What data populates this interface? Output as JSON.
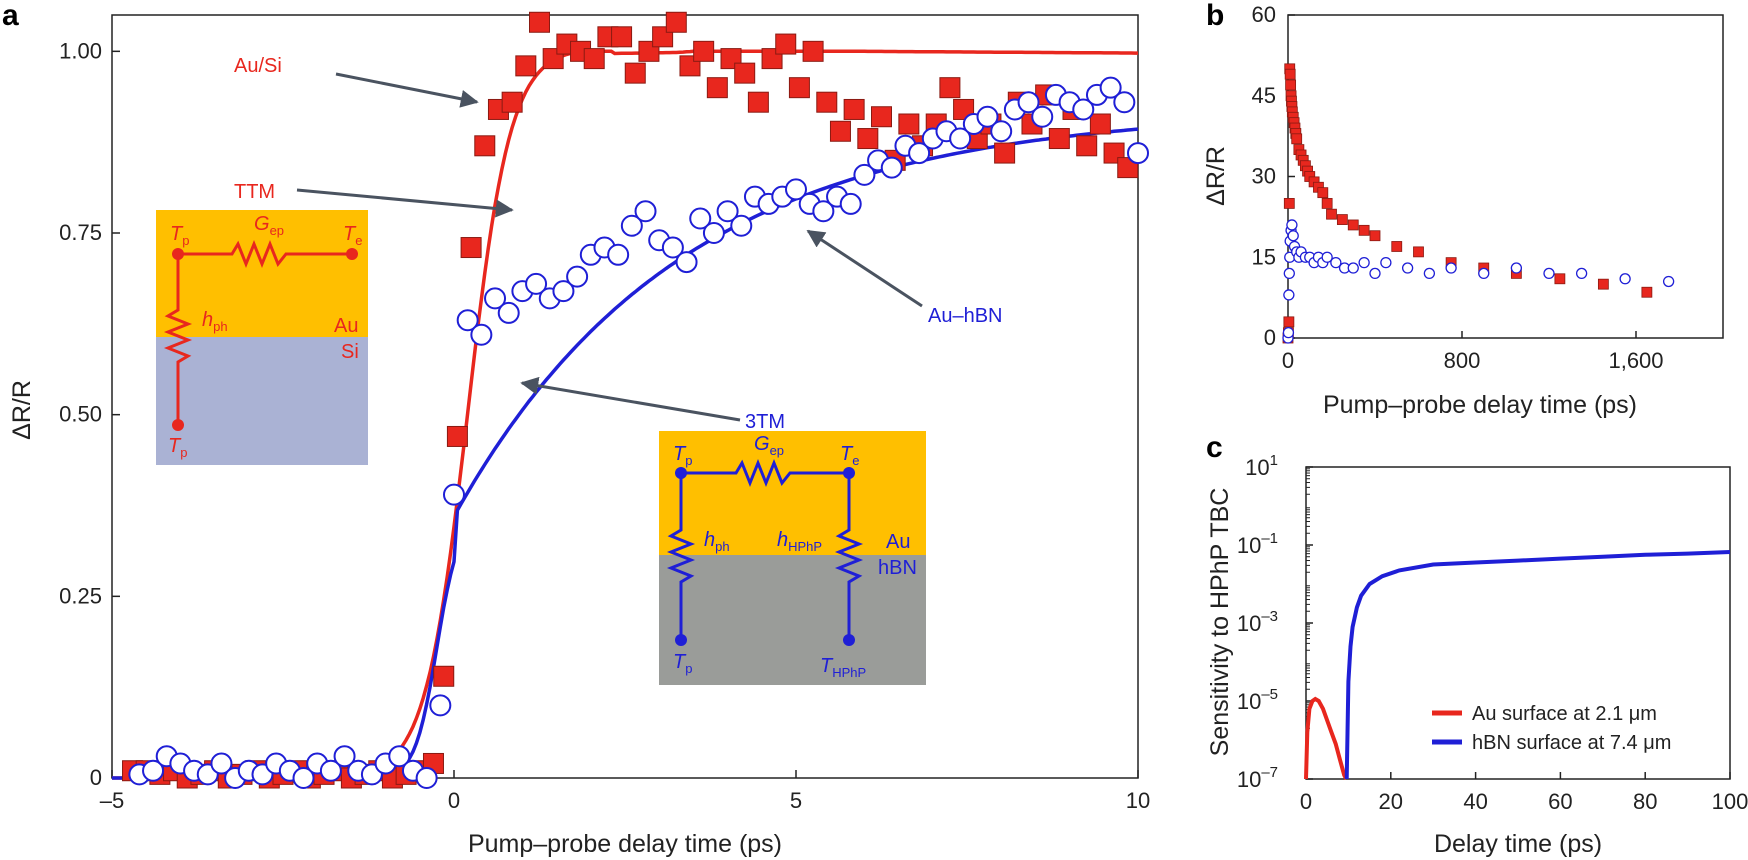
{
  "colors": {
    "red": "#e8271e",
    "blue": "#1f1fd6",
    "gold": "#ffbf00",
    "si": "#aab2d4",
    "hbn": "#9a9c99",
    "arrow": "#4a5360"
  },
  "chart_data": [
    {
      "panel": "a",
      "type": "scatter",
      "xlabel": "Pump–probe delay time (ps)",
      "ylabel": "ΔR/R",
      "xlim": [
        -5,
        10
      ],
      "ylim": [
        0,
        1.05
      ],
      "xticks": [
        "–5",
        "0",
        "5",
        "10"
      ],
      "yticks": [
        "0",
        "0.25",
        "0.50",
        "0.75",
        "1.00"
      ],
      "series": [
        {
          "name": "Au/Si",
          "marker": "square",
          "x": [
            -4.7,
            -4.5,
            -4.3,
            -4.1,
            -3.9,
            -3.7,
            -3.5,
            -3.3,
            -3.1,
            -2.9,
            -2.7,
            -2.5,
            -2.3,
            -2.1,
            -1.9,
            -1.7,
            -1.5,
            -1.3,
            -1.1,
            -0.9,
            -0.7,
            -0.5,
            -0.3,
            -0.15,
            0.05,
            0.25,
            0.45,
            0.65,
            0.85,
            1.05,
            1.25,
            1.45,
            1.65,
            1.85,
            2.05,
            2.25,
            2.45,
            2.65,
            2.85,
            3.05,
            3.25,
            3.45,
            3.65,
            3.85,
            4.05,
            4.25,
            4.45,
            4.65,
            4.85,
            5.05,
            5.25,
            5.45,
            5.65,
            5.85,
            6.05,
            6.25,
            6.45,
            6.65,
            6.85,
            7.05,
            7.25,
            7.45,
            7.65,
            7.85,
            8.05,
            8.25,
            8.45,
            8.65,
            8.85,
            9.05,
            9.25,
            9.45,
            9.65,
            9.85
          ],
          "y": [
            0.01,
            0.01,
            0.005,
            0.01,
            0.0,
            0.005,
            0.01,
            0.0,
            0.005,
            0.01,
            0.0,
            0.005,
            0.01,
            0.0,
            0.005,
            0.01,
            0.0,
            0.005,
            0.01,
            0.0,
            0.005,
            0.01,
            0.02,
            0.14,
            0.47,
            0.73,
            0.87,
            0.92,
            0.93,
            0.98,
            1.04,
            0.99,
            1.01,
            1.0,
            0.99,
            1.02,
            1.02,
            0.97,
            1.0,
            1.02,
            1.04,
            0.98,
            1.0,
            0.95,
            0.99,
            0.97,
            0.93,
            0.99,
            1.01,
            0.95,
            1.0,
            0.93,
            0.89,
            0.92,
            0.88,
            0.91,
            0.85,
            0.9,
            0.87,
            0.9,
            0.95,
            0.92,
            0.88,
            0.9,
            0.86,
            0.93,
            0.9,
            0.94,
            0.88,
            0.92,
            0.87,
            0.9,
            0.86,
            0.84
          ]
        },
        {
          "name": "Au–hBN",
          "marker": "open-circle",
          "x": [
            -4.6,
            -4.4,
            -4.2,
            -4.0,
            -3.8,
            -3.6,
            -3.4,
            -3.2,
            -3.0,
            -2.8,
            -2.6,
            -2.4,
            -2.2,
            -2.0,
            -1.8,
            -1.6,
            -1.4,
            -1.2,
            -1.0,
            -0.8,
            -0.6,
            -0.4,
            -0.2,
            0.0,
            0.2,
            0.4,
            0.6,
            0.8,
            1.0,
            1.2,
            1.4,
            1.6,
            1.8,
            2.0,
            2.2,
            2.4,
            2.6,
            2.8,
            3.0,
            3.2,
            3.4,
            3.6,
            3.8,
            4.0,
            4.2,
            4.4,
            4.6,
            4.8,
            5.0,
            5.2,
            5.4,
            5.6,
            5.8,
            6.0,
            6.2,
            6.4,
            6.6,
            6.8,
            7.0,
            7.2,
            7.4,
            7.6,
            7.8,
            8.0,
            8.2,
            8.4,
            8.6,
            8.8,
            9.0,
            9.2,
            9.4,
            9.6,
            9.8,
            10.0
          ],
          "y": [
            0.005,
            0.01,
            0.03,
            0.02,
            0.01,
            0.005,
            0.02,
            0.0,
            0.01,
            0.005,
            0.02,
            0.01,
            0.0,
            0.02,
            0.01,
            0.03,
            0.01,
            0.005,
            0.02,
            0.03,
            0.01,
            0.0,
            0.1,
            0.39,
            0.63,
            0.61,
            0.66,
            0.64,
            0.67,
            0.68,
            0.66,
            0.67,
            0.69,
            0.72,
            0.73,
            0.72,
            0.76,
            0.78,
            0.74,
            0.73,
            0.71,
            0.77,
            0.75,
            0.78,
            0.76,
            0.8,
            0.79,
            0.8,
            0.81,
            0.79,
            0.78,
            0.8,
            0.79,
            0.83,
            0.85,
            0.84,
            0.87,
            0.86,
            0.88,
            0.89,
            0.88,
            0.9,
            0.91,
            0.89,
            0.92,
            0.93,
            0.91,
            0.94,
            0.93,
            0.92,
            0.94,
            0.95,
            0.93,
            0.86
          ]
        }
      ],
      "fits": [
        {
          "name": "TTM",
          "color": "red"
        },
        {
          "name": "3TM",
          "color": "blue"
        }
      ],
      "annotations": {
        "ausi": "Au/Si",
        "ttm": "TTM",
        "auhbn": "Au–hBN",
        "threetm": "3TM"
      },
      "inset_ttm": {
        "tp": "T",
        "tp_sub": "p",
        "gep": "G",
        "gep_sub": "ep",
        "te": "T",
        "te_sub": "e",
        "hph": "h",
        "hph_sub": "ph",
        "au": "Au",
        "si": "Si",
        "tp2": "T",
        "tp2_sub": "p"
      },
      "inset_3tm": {
        "tp": "T",
        "tp_sub": "p",
        "gep": "G",
        "gep_sub": "ep",
        "te": "T",
        "te_sub": "e",
        "hph": "h",
        "hph_sub": "ph",
        "hhphp": "h",
        "hhphp_sub": "HPhP",
        "au": "Au",
        "hbn": "hBN",
        "tp2": "T",
        "tp2_sub": "p",
        "thphp": "T",
        "thphp_sub": "HPhP"
      }
    },
    {
      "panel": "b",
      "type": "scatter",
      "xlabel": "Pump–probe delay time (ps)",
      "ylabel": "ΔR/R",
      "xlim": [
        0,
        2000
      ],
      "ylim": [
        0,
        60
      ],
      "xticks": [
        "0",
        "800",
        "1,600"
      ],
      "yticks": [
        "0",
        "15",
        "30",
        "45",
        "60"
      ],
      "series": [
        {
          "name": "Au/Si",
          "marker": "square",
          "x": [
            0,
            2,
            4,
            6,
            8,
            10,
            12,
            14,
            16,
            18,
            20,
            24,
            28,
            32,
            36,
            40,
            50,
            60,
            70,
            80,
            90,
            100,
            120,
            140,
            160,
            180,
            200,
            250,
            300,
            350,
            400,
            500,
            600,
            750,
            900,
            1050,
            1250,
            1450,
            1650
          ],
          "y": [
            0,
            1,
            3,
            25,
            50,
            49,
            47,
            45,
            44,
            43,
            42,
            41,
            40,
            39,
            38,
            37,
            35,
            34,
            33,
            32,
            31,
            30,
            29,
            28,
            27,
            25,
            23,
            22,
            21,
            20,
            19,
            17,
            16,
            14,
            13,
            12,
            11,
            10,
            8.5
          ]
        },
        {
          "name": "Au–hBN",
          "marker": "open-circle",
          "x": [
            0,
            2,
            4,
            6,
            8,
            10,
            14,
            18,
            24,
            30,
            40,
            50,
            60,
            80,
            100,
            120,
            140,
            160,
            180,
            220,
            260,
            300,
            350,
            400,
            450,
            550,
            650,
            750,
            900,
            1050,
            1200,
            1350,
            1550,
            1750
          ],
          "y": [
            0,
            1,
            8,
            12,
            15,
            18,
            20,
            21,
            19,
            17,
            16,
            15,
            16,
            15,
            15,
            14,
            15,
            14,
            15,
            14,
            13,
            13,
            14,
            12,
            14,
            13,
            12,
            13,
            12,
            13,
            12,
            12,
            11,
            10.5
          ]
        }
      ]
    },
    {
      "panel": "c",
      "type": "line",
      "xlabel": "Delay time (ps)",
      "ylabel": "Sensitivity to HPhP TBC",
      "xlim": [
        0,
        100
      ],
      "ylim_log10": [
        -7,
        1
      ],
      "xticks": [
        "0",
        "20",
        "40",
        "60",
        "80",
        "100"
      ],
      "yticks": [
        {
          "base": "10",
          "exp": "1"
        },
        {
          "base": "10",
          "exp": "–1"
        },
        {
          "base": "10",
          "exp": "–3"
        },
        {
          "base": "10",
          "exp": "–5"
        },
        {
          "base": "10",
          "exp": "–7"
        }
      ],
      "series": [
        {
          "name": "Au surface at 2.1 μm",
          "color": "red",
          "x": [
            0,
            0.3,
            0.8,
            1.5,
            2.2,
            3,
            4,
            5,
            6,
            7,
            8,
            9,
            9.5
          ],
          "log10_y": [
            -7,
            -5.8,
            -5.2,
            -5.0,
            -4.95,
            -5.0,
            -5.2,
            -5.5,
            -5.8,
            -6.1,
            -6.5,
            -6.9,
            -7
          ]
        },
        {
          "name": "hBN surface at 7.4 μm",
          "color": "blue",
          "x": [
            9.6,
            10,
            10.5,
            11,
            12,
            13,
            15,
            18,
            22,
            30,
            40,
            50,
            60,
            70,
            80,
            90,
            100
          ],
          "log10_y": [
            -7,
            -4.5,
            -3.6,
            -3.1,
            -2.6,
            -2.3,
            -2.0,
            -1.8,
            -1.65,
            -1.5,
            -1.45,
            -1.4,
            -1.35,
            -1.3,
            -1.25,
            -1.22,
            -1.18
          ]
        }
      ]
    }
  ],
  "panel_labels": {
    "a": "a",
    "b": "b",
    "c": "c"
  }
}
